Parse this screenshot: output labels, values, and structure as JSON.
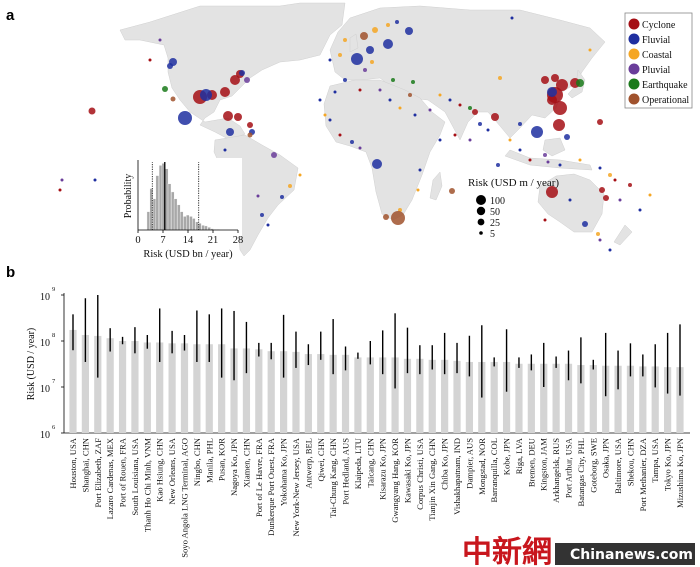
{
  "panels": {
    "a": "a",
    "b": "b"
  },
  "map": {
    "legend": [
      {
        "label": "Cyclone",
        "color": "#a50f15"
      },
      {
        "label": "Fluvial",
        "color": "#1f2fa0"
      },
      {
        "label": "Coastal",
        "color": "#f5a623"
      },
      {
        "label": "Pluvial",
        "color": "#6a3d9a"
      },
      {
        "label": "Earthquake",
        "color": "#1a7a1a"
      },
      {
        "label": "Operational",
        "color": "#a0522d"
      }
    ],
    "size_legend": {
      "title": "Risk (USD m / year)",
      "items": [
        "100",
        "50",
        "25",
        "5"
      ]
    }
  },
  "chart_data": [
    {
      "type": "bar",
      "title": "",
      "xlabel": "Risk (USD bn / year)",
      "ylabel": "Probability",
      "xlim": [
        0,
        28
      ],
      "xticks": [
        "0",
        "7",
        "14",
        "21",
        "28"
      ],
      "bin_starts": [
        2.5,
        3.3,
        4.2,
        5.0,
        5.9,
        6.7,
        7.6,
        8.4,
        9.3,
        10.1,
        11.0,
        11.8,
        12.7,
        13.5,
        14.4,
        15.2,
        16.1,
        16.9,
        17.8,
        18.6,
        19.5,
        20.3,
        21.2,
        22.0
      ],
      "bin_width": 0.85,
      "values": [
        0.27,
        0.61,
        0.46,
        0.8,
        0.95,
        0.98,
        0.9,
        0.68,
        0.56,
        0.46,
        0.37,
        0.27,
        0.2,
        0.22,
        0.2,
        0.17,
        0.12,
        0.1,
        0.07,
        0.06,
        0.04,
        0.02,
        0.01,
        0.01
      ],
      "reference_lines": [
        {
          "x": 4.0,
          "style": "dotted"
        },
        {
          "x": 7.5,
          "style": "solid"
        },
        {
          "x": 17.0,
          "style": "dotted"
        }
      ]
    },
    {
      "type": "bar",
      "title": "",
      "xlabel": "",
      "ylabel": "Risk (USD / year)",
      "yscale": "log",
      "ylim": [
        1000000.0,
        1000000000.0
      ],
      "yticks": [
        "10",
        "10",
        "10",
        "10"
      ],
      "ytick_exponents": [
        "6",
        "7",
        "8",
        "9"
      ],
      "bar_color": "#d4d4d4",
      "categories": [
        "Houston, USA",
        "Shanghai, CHN",
        "Port Elizabeth, ZAF",
        "Lazaro Cardenas, MEX",
        "Port of Rouen, FRA",
        "South Louisiana, USA",
        "Thanh Ho Chi Minh, VNM",
        "Kao Hsiung, CHN",
        "New Orleans, USA",
        "Soyo Angola LNG Terminal, AGO",
        "Ningbo, CHN",
        "Manila, PHL",
        "Pusan, KOR",
        "Nagoya Ko, JPN",
        "Xiamen, CHN",
        "Port of Le Havre, FRA",
        "Dunkerque Port Ouest, FRA",
        "Yokohama Ko, JPN",
        "New York-New Jersey, USA",
        "Antwerp, BEL",
        "Qiwei, CHN",
        "Tai-Chung Kang, CHN",
        "Port Hedland, AUS",
        "Klaipeda, LTU",
        "Taicang, CHN",
        "Kisarazu Ko, JPN",
        "Gwangyang Hang, KOR",
        "Kawasaki Ko, JPN",
        "Corpus Christi, USA",
        "Tianjin Xin Gang, CHN",
        "Chiba Ko, JPN",
        "Vishakhapatnam, IND",
        "Dampier, AUS",
        "Mongstad, NOR",
        "Barranquilla, COL",
        "Kobe, JPN",
        "Riga, LVA",
        "Bremen, DEU",
        "Kingston, JAM",
        "Arkhangelsk, RUS",
        "Port Arthur, USA",
        "Batangas City, PHL",
        "Goteborg, SWE",
        "Osaka, JPN",
        "Baltimore, USA",
        "Shekou, CHN",
        "Port Methanier, DZA",
        "Tampa, USA",
        "Tokyo Ko, JPN",
        "Mizushima Ko, JPN"
      ],
      "values": [
        174000000.0,
        135000000.0,
        129000000.0,
        115000000.0,
        100000000.0,
        100000000.0,
        93000000.0,
        93000000.0,
        89000000.0,
        89000000.0,
        85000000.0,
        85000000.0,
        85000000.0,
        69000000.0,
        69000000.0,
        66000000.0,
        60000000.0,
        60000000.0,
        58000000.0,
        52000000.0,
        52000000.0,
        50000000.0,
        50000000.0,
        44000000.0,
        44000000.0,
        44000000.0,
        44000000.0,
        41000000.0,
        41000000.0,
        39000000.0,
        39000000.0,
        37000000.0,
        35000000.0,
        35000000.0,
        35000000.0,
        35000000.0,
        32000000.0,
        32000000.0,
        32000000.0,
        32000000.0,
        32000000.0,
        30000000.0,
        30000000.0,
        29000000.0,
        29000000.0,
        29000000.0,
        28000000.0,
        28000000.0,
        27000000.0,
        27000000.0
      ],
      "error_high": [
        380000000.0,
        850000000.0,
        1000000000.0,
        190000000.0,
        123000000.0,
        200000000.0,
        135000000.0,
        510000000.0,
        166000000.0,
        135000000.0,
        460000000.0,
        380000000.0,
        510000000.0,
        450000000.0,
        260000000.0,
        91000000.0,
        91000000.0,
        370000000.0,
        160000000.0,
        85000000.0,
        160000000.0,
        300000000.0,
        76000000.0,
        56000000.0,
        100000000.0,
        170000000.0,
        400000000.0,
        195000000.0,
        81000000.0,
        81000000.0,
        150000000.0,
        91000000.0,
        130000000.0,
        220000000.0,
        44000000.0,
        180000000.0,
        44000000.0,
        51000000.0,
        91000000.0,
        46000000.0,
        62000000.0,
        120000000.0,
        39000000.0,
        150000000.0,
        62000000.0,
        89000000.0,
        51000000.0,
        85000000.0,
        150000000.0,
        230000000.0
      ],
      "error_low": [
        63000000.0,
        35000000.0,
        16000000.0,
        59000000.0,
        85000000.0,
        54000000.0,
        68000000.0,
        35000000.0,
        54000000.0,
        62000000.0,
        35000000.0,
        35000000.0,
        16000000.0,
        14000000.0,
        20000000.0,
        46000000.0,
        40000000.0,
        16000000.0,
        26000000.0,
        30000000.0,
        39000000.0,
        19000000.0,
        23000000.0,
        41000000.0,
        31000000.0,
        19000000.0,
        9300000.0,
        20000000.0,
        19000000.0,
        24000000.0,
        19000000.0,
        20000000.0,
        17000000.0,
        5900000.0,
        28000000.0,
        7900000.0,
        26000000.0,
        23000000.0,
        10000000.0,
        26000000.0,
        14000000.0,
        12000000.0,
        24000000.0,
        6300000.0,
        8900000.0,
        17000000.0,
        17000000.0,
        9800000.0,
        7200000.0,
        6500000.0
      ]
    }
  ],
  "watermark": {
    "chinese": "中新網",
    "site": "Chinanews.com"
  }
}
